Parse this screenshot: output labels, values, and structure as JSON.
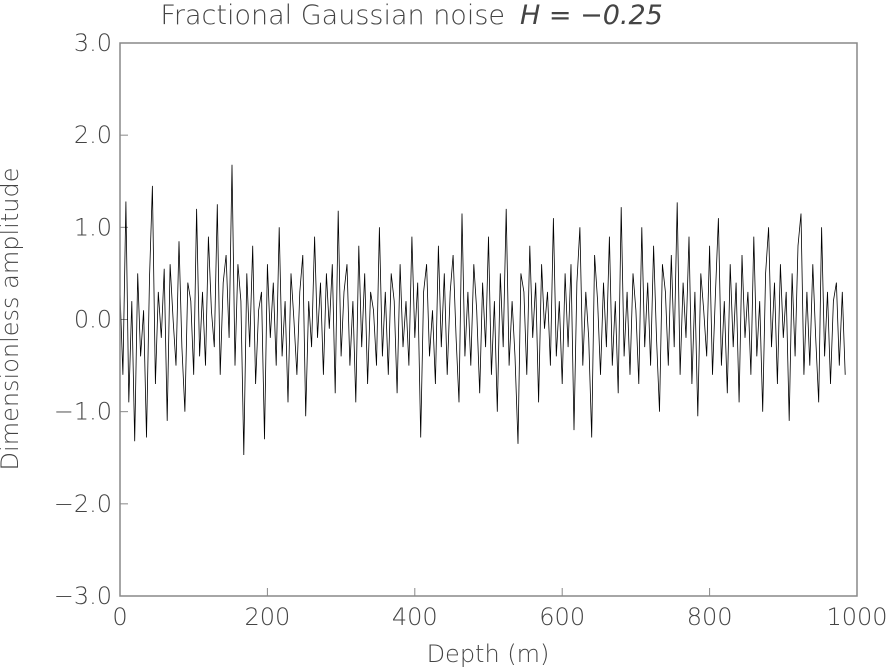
{
  "chart_data": {
    "type": "line",
    "title": "Fractional Gaussian noise",
    "title_math": "H = −0.25",
    "xlabel": "Depth (m)",
    "ylabel": "Dimensionless amplitude",
    "xlim": [
      0,
      1000
    ],
    "ylim": [
      -3,
      3
    ],
    "xticks": [
      0,
      200,
      400,
      600,
      800,
      1000
    ],
    "xtick_labels": [
      "0",
      "200",
      "400",
      "600",
      "800",
      "1000"
    ],
    "yticks": [
      3,
      2,
      1,
      0,
      -1,
      -2,
      -3
    ],
    "ytick_labels": [
      "3.0",
      "2.0",
      "1.0",
      "0.0",
      "−1.0",
      "−2.0",
      "−3.0"
    ],
    "grid": false,
    "line_color": "#000000",
    "frame_color": "#888888",
    "x_step": 4,
    "values": [
      0.3,
      -0.6,
      1.28,
      -0.9,
      0.2,
      -1.32,
      0.5,
      -0.4,
      0.1,
      -1.28,
      0.45,
      1.45,
      -0.7,
      0.3,
      -0.2,
      0.55,
      -1.1,
      0.6,
      0.0,
      -0.5,
      0.85,
      -0.3,
      -1.0,
      0.4,
      0.2,
      -0.6,
      1.2,
      -0.4,
      0.3,
      -0.5,
      0.9,
      0.1,
      -0.3,
      1.25,
      -0.6,
      0.4,
      0.7,
      -0.2,
      1.68,
      -0.5,
      0.6,
      0.2,
      -1.47,
      0.5,
      -0.3,
      0.8,
      -0.7,
      0.1,
      0.3,
      -1.3,
      0.6,
      -0.2,
      0.4,
      -0.5,
      1.0,
      -0.4,
      0.2,
      -0.9,
      0.5,
      0.0,
      -0.6,
      0.3,
      0.7,
      -1.05,
      0.2,
      -0.3,
      0.9,
      -0.2,
      0.4,
      -0.6,
      0.5,
      -0.1,
      0.6,
      -0.8,
      1.18,
      -0.4,
      0.3,
      0.6,
      -0.5,
      0.2,
      -0.9,
      0.8,
      -0.3,
      0.5,
      -0.7,
      0.3,
      0.1,
      -0.5,
      1.0,
      -0.4,
      0.3,
      -0.6,
      0.5,
      0.2,
      -0.8,
      0.6,
      -0.3,
      0.2,
      -0.5,
      0.9,
      -0.2,
      0.4,
      -1.28,
      0.3,
      0.6,
      -0.4,
      0.1,
      -0.7,
      0.8,
      -0.3,
      0.5,
      -0.6,
      0.3,
      0.7,
      -0.2,
      -0.9,
      1.15,
      -0.4,
      0.3,
      -0.5,
      0.6,
      0.1,
      -0.8,
      0.4,
      -0.3,
      0.9,
      -0.6,
      0.2,
      -1.0,
      0.5,
      -0.3,
      1.2,
      -0.5,
      0.2,
      -0.4,
      -1.35,
      0.5,
      0.3,
      -0.6,
      0.8,
      -0.2,
      0.4,
      -0.9,
      0.6,
      -0.1,
      0.3,
      -0.5,
      1.1,
      -0.4,
      0.2,
      -0.7,
      0.5,
      -0.3,
      0.6,
      -1.2,
      0.4,
      1.0,
      -0.5,
      0.3,
      -0.2,
      -1.28,
      0.7,
      0.2,
      -0.6,
      0.4,
      -0.3,
      0.9,
      -0.5,
      0.2,
      -0.8,
      1.22,
      -0.4,
      0.3,
      -0.6,
      0.5,
      0.1,
      -0.7,
      1.0,
      -0.3,
      0.4,
      -0.5,
      0.8,
      -0.2,
      -1.0,
      0.6,
      0.3,
      -0.5,
      0.7,
      -0.3,
      1.27,
      -0.6,
      0.4,
      -0.2,
      0.9,
      -0.7,
      0.3,
      -1.05,
      0.5,
      0.1,
      -0.4,
      0.8,
      -0.6,
      0.3,
      1.1,
      -0.5,
      0.2,
      -0.8,
      0.6,
      -0.3,
      0.4,
      -0.9,
      0.7,
      -0.2,
      0.3,
      -0.6,
      0.9,
      -0.4,
      0.2,
      -1.0,
      0.5,
      1.0,
      -0.3,
      0.4,
      -0.7,
      0.6,
      -0.2,
      0.3,
      -1.1,
      0.5,
      -0.4,
      0.8,
      1.15,
      -0.6,
      0.3,
      -0.5,
      0.6,
      -0.2,
      -0.9,
      1.0,
      -0.4,
      0.3,
      -0.7,
      0.2,
      0.4,
      -0.5,
      0.3,
      -0.6
    ]
  }
}
